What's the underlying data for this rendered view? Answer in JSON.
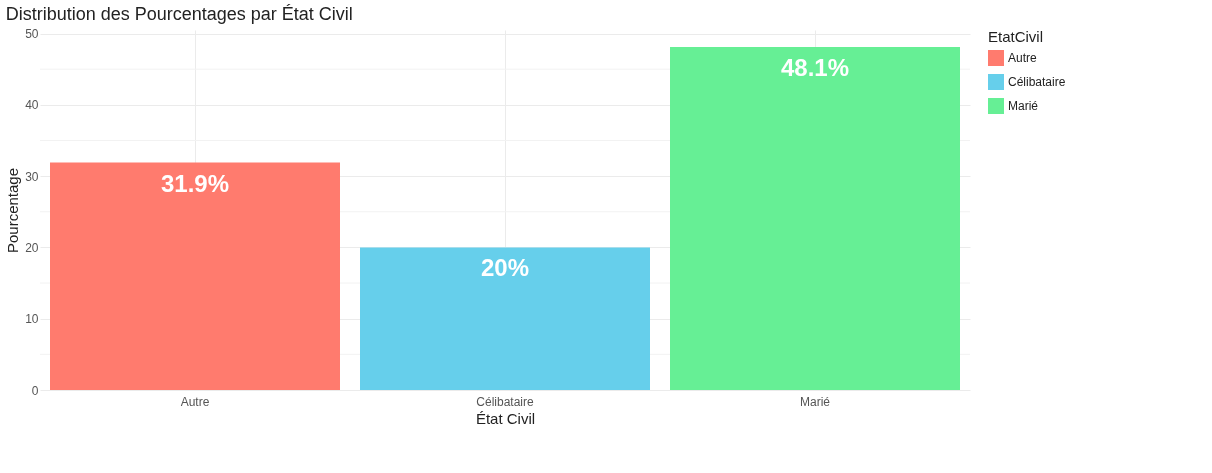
{
  "chart_data": {
    "type": "bar",
    "title": "Distribution des Pourcentages par État Civil",
    "xlabel": "État Civil",
    "ylabel": "Pourcentage",
    "legend_title": "EtatCivil",
    "categories": [
      "Autre",
      "Célibataire",
      "Marié"
    ],
    "stacked": true,
    "series": [
      {
        "name": "Autre",
        "color": "#ff7b6e",
        "values": [
          31.9,
          null,
          null
        ],
        "value_labels": [
          "31.9%",
          null,
          null
        ]
      },
      {
        "name": "Célibataire",
        "color": "#66cfeb",
        "values": [
          null,
          20,
          null
        ],
        "value_labels": [
          null,
          "20%",
          null
        ]
      },
      {
        "name": "Marié",
        "color": "#66ef95",
        "values": [
          null,
          null,
          48.1
        ],
        "value_labels": [
          null,
          null,
          "48.1%"
        ]
      }
    ],
    "ylim": [
      0,
      50.5
    ],
    "yticks": [
      0,
      {
        "value": 5,
        "label": null
      },
      10,
      {
        "value": 15,
        "label": null
      },
      20,
      {
        "value": 25,
        "label": null
      },
      30,
      {
        "value": 35,
        "label": null
      },
      40,
      {
        "value": 45,
        "label": null
      },
      50
    ],
    "grid": true,
    "legend": "right"
  }
}
